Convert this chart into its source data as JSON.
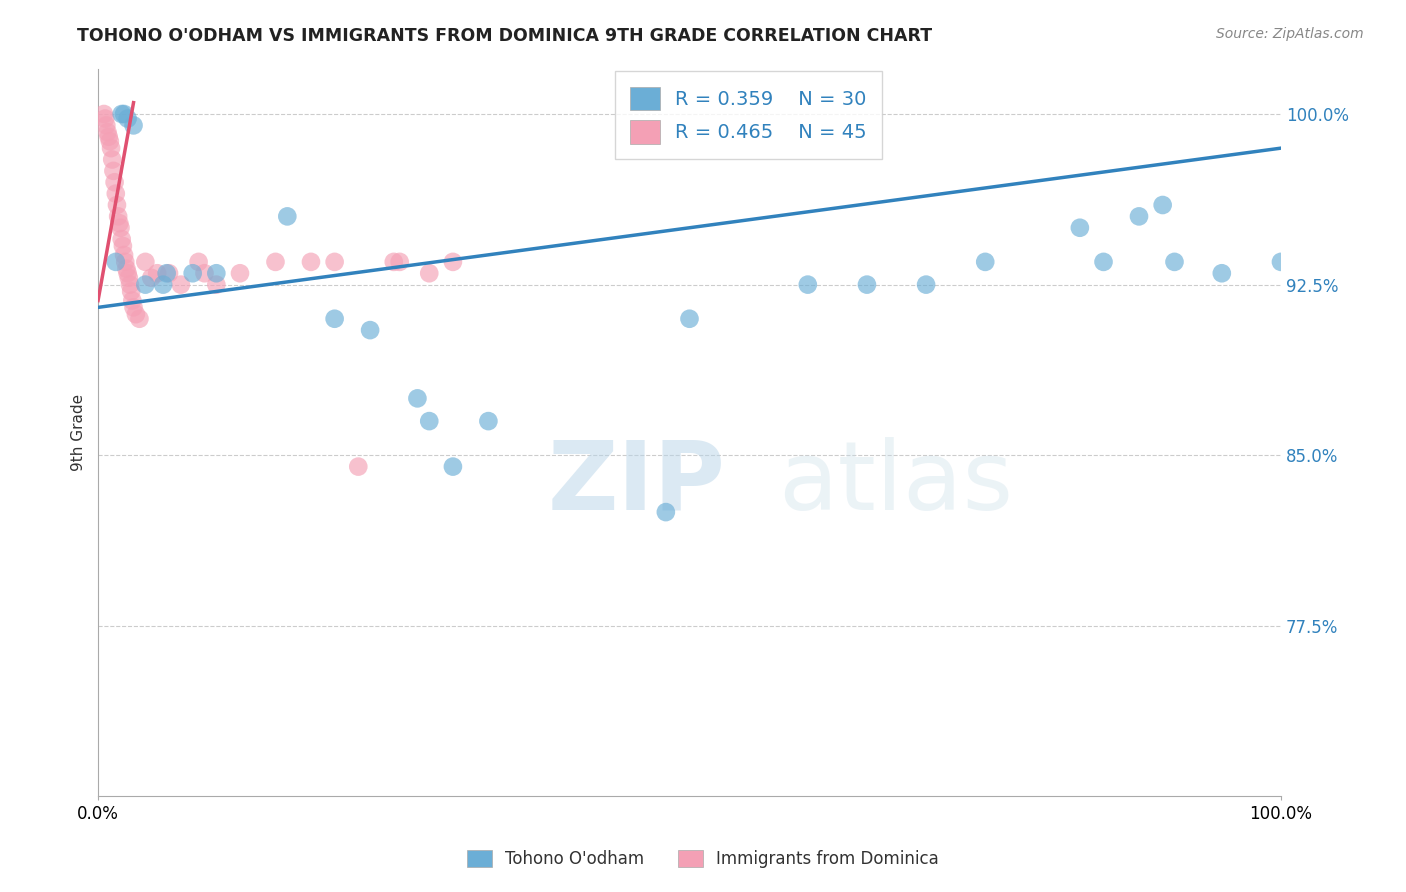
{
  "title": "TOHONO O'ODHAM VS IMMIGRANTS FROM DOMINICA 9TH GRADE CORRELATION CHART",
  "source": "Source: ZipAtlas.com",
  "ylabel": "9th Grade",
  "xlim": [
    0.0,
    100.0
  ],
  "ylim": [
    70.0,
    102.0
  ],
  "ytick_vals": [
    77.5,
    85.0,
    92.5,
    100.0
  ],
  "grid_color": "#cccccc",
  "background_color": "#ffffff",
  "legend_r1": "R = 0.359",
  "legend_n1": "N = 30",
  "legend_r2": "R = 0.465",
  "legend_n2": "N = 45",
  "blue_color": "#6baed6",
  "pink_color": "#f4a0b5",
  "blue_line_color": "#3182bd",
  "pink_line_color": "#e05070",
  "watermark_zip": "ZIP",
  "watermark_atlas": "atlas",
  "blue_scatter_x": [
    1.5,
    2.0,
    2.2,
    2.5,
    3.0,
    4.0,
    5.5,
    5.8,
    8.0,
    10.0,
    16.0,
    20.0,
    23.0,
    27.0,
    28.0,
    30.0,
    33.0,
    48.0,
    50.0,
    60.0,
    65.0,
    70.0,
    75.0,
    83.0,
    85.0,
    88.0,
    90.0,
    91.0,
    95.0,
    100.0
  ],
  "blue_scatter_y": [
    93.5,
    100.0,
    100.0,
    99.8,
    99.5,
    92.5,
    92.5,
    93.0,
    93.0,
    93.0,
    95.5,
    91.0,
    90.5,
    87.5,
    86.5,
    84.5,
    86.5,
    82.5,
    91.0,
    92.5,
    92.5,
    92.5,
    93.5,
    95.0,
    93.5,
    95.5,
    96.0,
    93.5,
    93.0,
    93.5
  ],
  "pink_scatter_x": [
    0.5,
    0.6,
    0.7,
    0.8,
    0.9,
    1.0,
    1.1,
    1.2,
    1.3,
    1.4,
    1.5,
    1.6,
    1.7,
    1.8,
    1.9,
    2.0,
    2.1,
    2.2,
    2.3,
    2.4,
    2.5,
    2.6,
    2.7,
    2.8,
    2.9,
    3.0,
    3.2,
    3.5,
    4.0,
    4.5,
    5.0,
    6.0,
    7.0,
    8.5,
    9.0,
    10.0,
    12.0,
    15.0,
    18.0,
    20.0,
    22.0,
    25.0,
    25.5,
    28.0,
    30.0
  ],
  "pink_scatter_y": [
    100.0,
    99.8,
    99.5,
    99.2,
    99.0,
    98.8,
    98.5,
    98.0,
    97.5,
    97.0,
    96.5,
    96.0,
    95.5,
    95.2,
    95.0,
    94.5,
    94.2,
    93.8,
    93.5,
    93.2,
    93.0,
    92.8,
    92.5,
    92.2,
    91.8,
    91.5,
    91.2,
    91.0,
    93.5,
    92.8,
    93.0,
    93.0,
    92.5,
    93.5,
    93.0,
    92.5,
    93.0,
    93.5,
    93.5,
    93.5,
    84.5,
    93.5,
    93.5,
    93.0,
    93.5
  ],
  "blue_line_x0": 0.0,
  "blue_line_y0": 91.5,
  "blue_line_x1": 100.0,
  "blue_line_y1": 98.5,
  "pink_line_x0": 0.0,
  "pink_line_y0": 91.8,
  "pink_line_x1": 3.0,
  "pink_line_y1": 100.5
}
